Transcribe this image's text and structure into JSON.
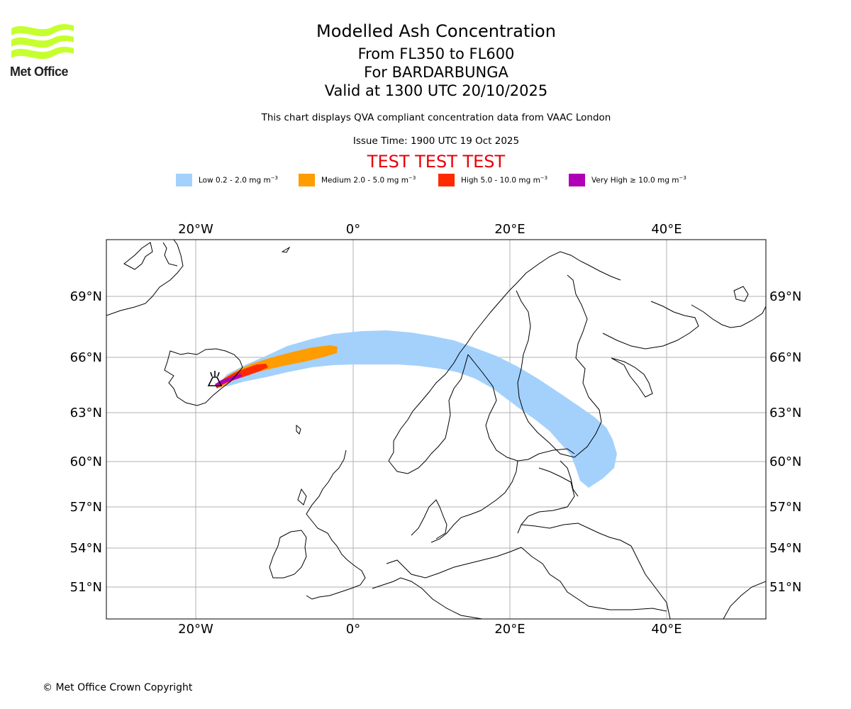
{
  "header": {
    "title": "Modelled Ash Concentration",
    "flight_levels": "From FL350 to FL600",
    "volcano": "For BARDARBUNGA",
    "valid_time": "Valid at 1300 UTC 20/10/2025",
    "qva_note": "This chart displays QVA compliant concentration data from VAAC London",
    "issue_time": "Issue Time: 1900 UTC 19 Oct 2025",
    "test_banner": "TEST TEST TEST"
  },
  "logo": {
    "text": "Met Office",
    "color": "#c6ff2e"
  },
  "legend": [
    {
      "key": "low",
      "label": "Low 0.2 - 2.0 mg m",
      "color": "#a3d1fc"
    },
    {
      "key": "med",
      "label": "Medium 2.0 - 5.0 mg m",
      "color": "#ff9c00"
    },
    {
      "key": "high",
      "label": "High 5.0 - 10.0 mg m",
      "color": "#ff2a00"
    },
    {
      "key": "vhigh",
      "label": "Very High  ≥  10.0 mg m",
      "color": "#b000b5"
    }
  ],
  "legend_unit_exponent": "−3",
  "map": {
    "lon_ticks": [
      "20°W",
      "0°",
      "20°E",
      "40°E"
    ],
    "lat_ticks": [
      "69°N",
      "66°N",
      "63°N",
      "60°N",
      "57°N",
      "54°N",
      "51°N"
    ],
    "volcano_marker": "volcano-icon"
  },
  "footer": {
    "copyright": "© Met Office Crown Copyright"
  }
}
